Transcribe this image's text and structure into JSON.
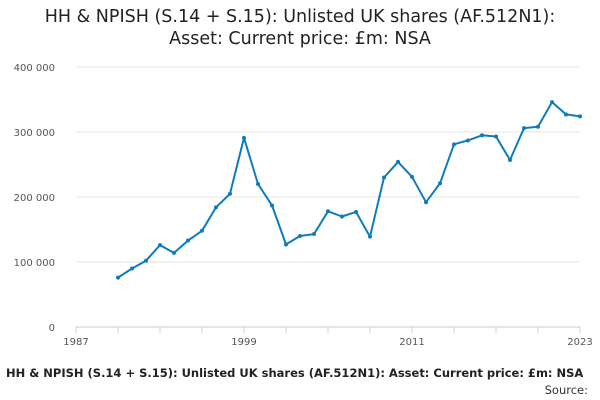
{
  "title_line1": "HH & NPISH (S.14 + S.15): Unlisted UK shares (AF.512N1):",
  "title_line2": "Asset: Current price: £m: NSA",
  "footer_title": "HH & NPISH (S.14 + S.15): Unlisted UK shares (AF.512N1): Asset: Current price: £m: NSA",
  "footer_source": "Source:",
  "chart_data": {
    "type": "line",
    "title": "HH & NPISH (S.14 + S.15): Unlisted UK shares (AF.512N1): Asset: Current price: £m: NSA",
    "xlabel": "",
    "ylabel": "",
    "xlim": [
      1987,
      2023
    ],
    "ylim": [
      0,
      400000
    ],
    "x_ticks": [
      1987,
      1999,
      2011,
      2023
    ],
    "x_tick_labels": [
      "1987",
      "1999",
      "2011",
      "2023"
    ],
    "y_ticks": [
      0,
      100000,
      200000,
      300000,
      400000
    ],
    "y_tick_labels": [
      "0",
      "100 000",
      "200 000",
      "300 000",
      "400 000"
    ],
    "grid": "horizontal",
    "color": "#0f7bbf",
    "series": [
      {
        "x": [
          1990,
          1991,
          1992,
          1993,
          1994,
          1995,
          1996,
          1997,
          1998,
          1999,
          2000,
          2001,
          2002,
          2003,
          2004,
          2005,
          2006,
          2007,
          2008,
          2009,
          2010,
          2011,
          2012,
          2013,
          2014,
          2015,
          2016,
          2017,
          2018,
          2019,
          2020,
          2021,
          2022,
          2023
        ],
        "values": [
          76000,
          90000,
          102000,
          126000,
          114000,
          133000,
          148000,
          184000,
          205000,
          291000,
          220000,
          187000,
          127000,
          140000,
          143000,
          178000,
          170000,
          177000,
          139000,
          230000,
          254000,
          231000,
          192000,
          221000,
          281000,
          287000,
          295000,
          293000,
          257000,
          306000,
          308000,
          346000,
          327000,
          324000
        ]
      }
    ]
  }
}
